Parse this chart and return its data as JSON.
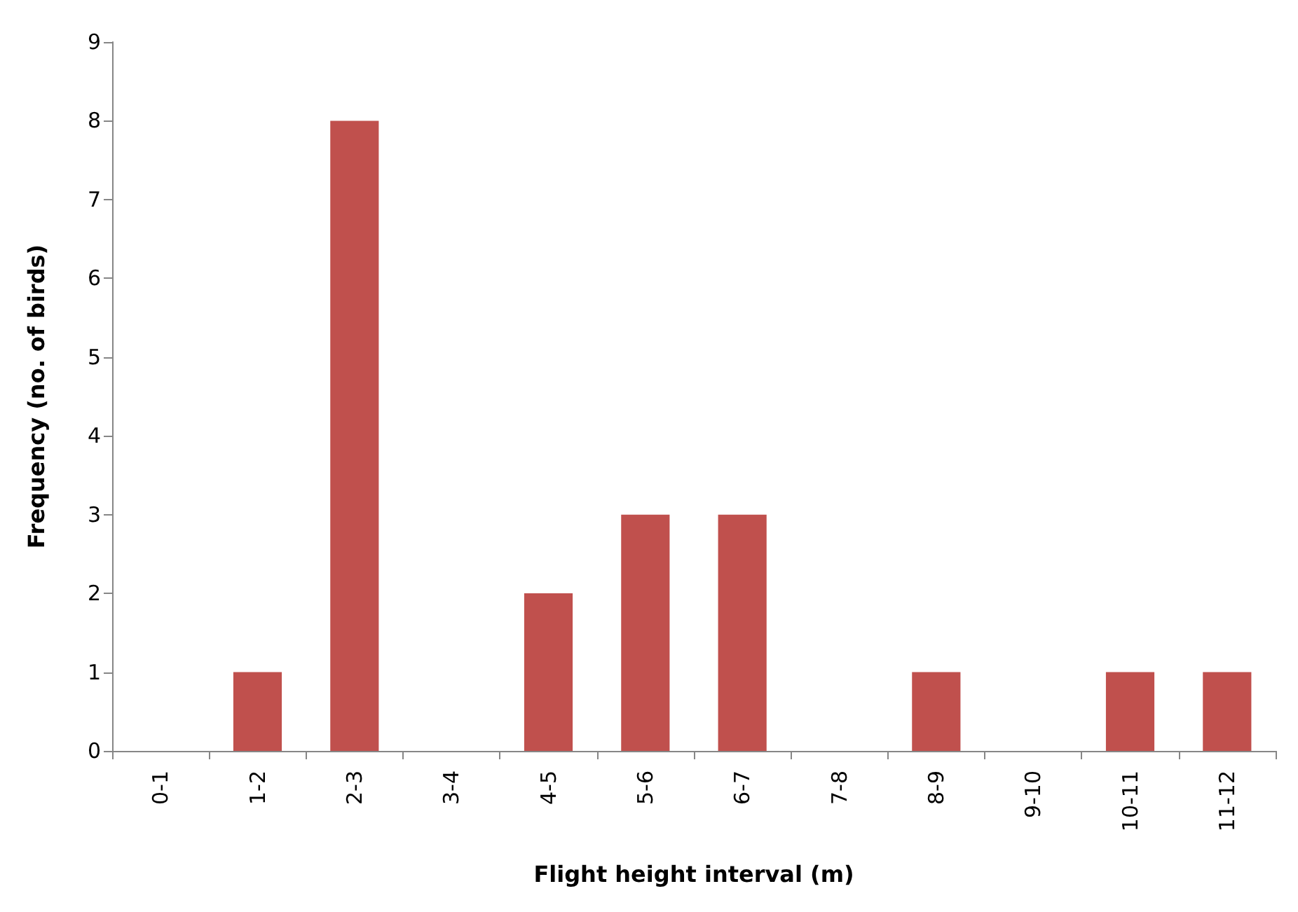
{
  "chart_data": {
    "type": "bar",
    "xlabel": "Flight height interval (m)",
    "ylabel": "Frequency (no. of birds)",
    "categories": [
      "0-1",
      "1-2",
      "2-3",
      "3-4",
      "4-5",
      "5-6",
      "6-7",
      "7-8",
      "8-9",
      "9-10",
      "10-11",
      "11-12"
    ],
    "values": [
      0,
      1,
      8,
      0,
      2,
      3,
      3,
      0,
      1,
      0,
      1,
      1
    ],
    "color": "#c0504d",
    "ylim": [
      0,
      9
    ],
    "yticks": [
      0,
      1,
      2,
      3,
      4,
      5,
      6,
      7,
      8,
      9
    ],
    "grid": false
  }
}
